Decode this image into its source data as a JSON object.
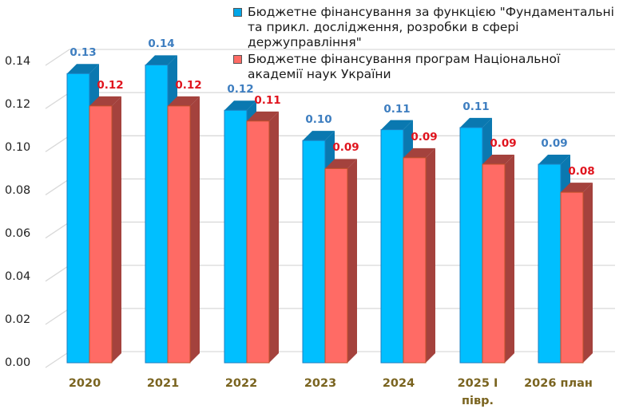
{
  "chart_data": {
    "type": "bar",
    "style": "3d-clustered-column",
    "title": "",
    "xlabel": "",
    "ylabel": "",
    "ylim": [
      0,
      0.14
    ],
    "yticks": [
      "0.00",
      "0.02",
      "0.04",
      "0.06",
      "0.08",
      "0.10",
      "0.12",
      "0.14"
    ],
    "grid": true,
    "legend_position": "top-right",
    "categories": [
      "2020",
      "2021",
      "2022",
      "2023",
      "2024",
      "2025 І півр.",
      "2026 план"
    ],
    "category_lines": [
      [
        "2020"
      ],
      [
        "2021"
      ],
      [
        "2022"
      ],
      [
        "2023"
      ],
      [
        "2024"
      ],
      [
        "2025 І",
        "півр."
      ],
      [
        "2026 план"
      ]
    ],
    "series": [
      {
        "name": "Бюджетне фінансування за функцією \"Фундаментальні та прикл.  дослідження, розробки в сфері держуправління\"",
        "legend_lines": [
          "Бюджетне фінансування за функцією \"Фундаментальні",
          "та прикл.  дослідження, розробки в сфері",
          "держуправління\""
        ],
        "color": "#00BFFF",
        "side_color": "#0A78B0",
        "label_color": "#3E7EC0",
        "values": [
          0.134,
          0.138,
          0.117,
          0.103,
          0.108,
          0.109,
          0.092
        ],
        "data_labels": [
          "0.13",
          "0.14",
          "0.12",
          "0.10",
          "0.11",
          "0.11",
          "0.09"
        ]
      },
      {
        "name": "Бюджетне фінансування програм  Національної академії наук України",
        "legend_lines": [
          "Бюджетне фінансування програм  Національної",
          "академії наук України"
        ],
        "color": "#FF6B65",
        "side_color": "#A4423D",
        "label_color": "#E0141E",
        "values": [
          0.119,
          0.119,
          0.112,
          0.09,
          0.095,
          0.092,
          0.079
        ],
        "data_labels": [
          "0.12",
          "0.12",
          "0.11",
          "0.09",
          "0.09",
          "0.09",
          "0.08"
        ]
      }
    ]
  }
}
